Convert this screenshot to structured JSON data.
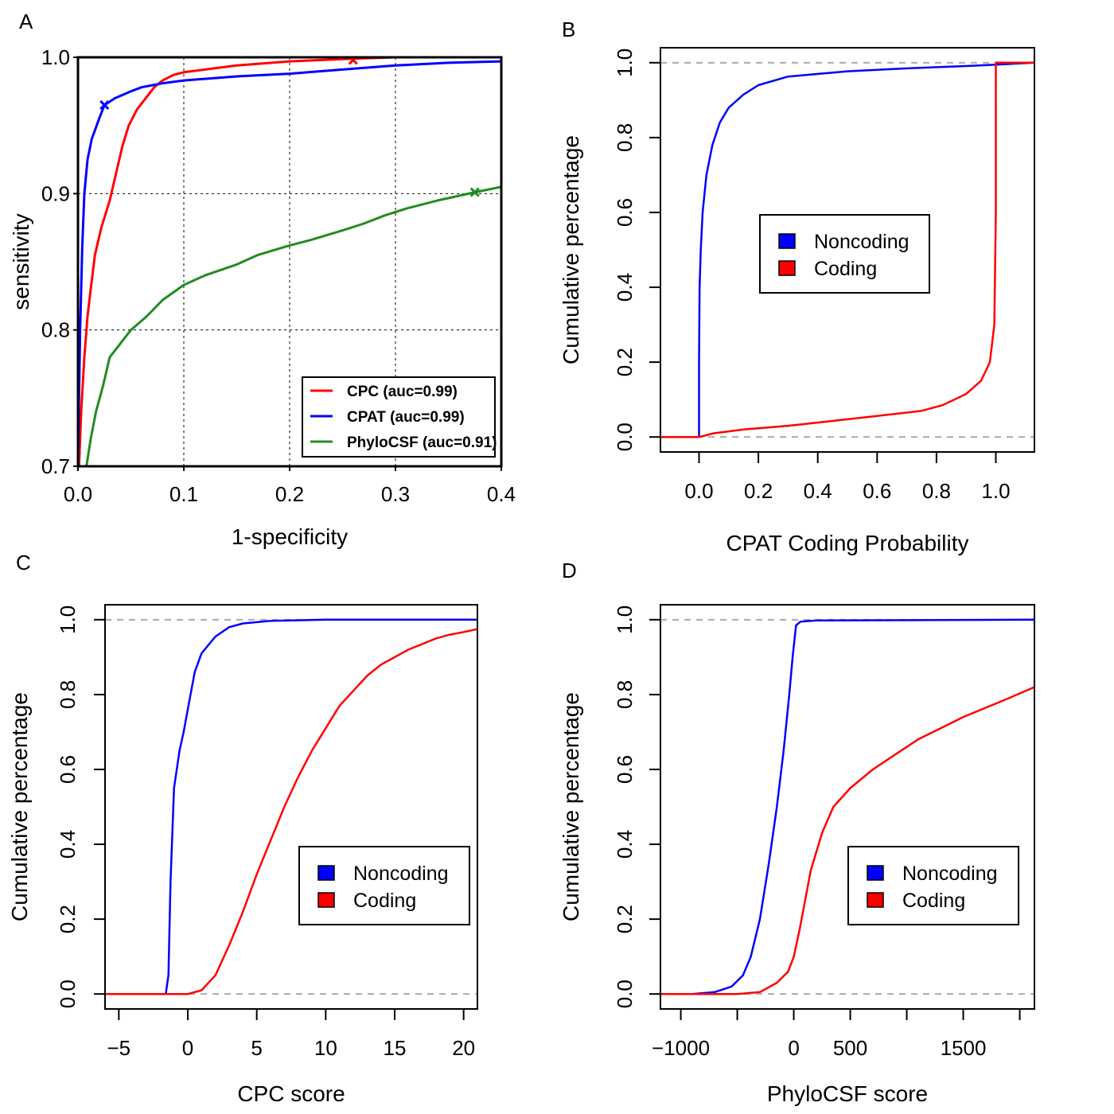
{
  "chart_data": [
    {
      "panel": "A",
      "type": "line",
      "xlabel": "1-specificity",
      "ylabel": "sensitivity",
      "xlim": [
        0.0,
        0.4
      ],
      "ylim": [
        0.7,
        1.0
      ],
      "xticks": [
        "0.0",
        "0.1",
        "0.2",
        "0.3",
        "0.4"
      ],
      "yticks": [
        "0.7",
        "0.8",
        "0.9",
        "1.0"
      ],
      "grid": true,
      "legend_position": "bottom-right",
      "series": [
        {
          "name": "CPC (auc=0.99)",
          "color": "#ff0000",
          "marker": {
            "x": 0.26,
            "y": 0.998
          },
          "points": [
            [
              0.001,
              0.7
            ],
            [
              0.003,
              0.74
            ],
            [
              0.006,
              0.78
            ],
            [
              0.009,
              0.81
            ],
            [
              0.012,
              0.83
            ],
            [
              0.016,
              0.855
            ],
            [
              0.022,
              0.875
            ],
            [
              0.03,
              0.895
            ],
            [
              0.036,
              0.915
            ],
            [
              0.042,
              0.935
            ],
            [
              0.048,
              0.95
            ],
            [
              0.056,
              0.962
            ],
            [
              0.064,
              0.97
            ],
            [
              0.072,
              0.978
            ],
            [
              0.08,
              0.983
            ],
            [
              0.09,
              0.987
            ],
            [
              0.1,
              0.989
            ],
            [
              0.12,
              0.991
            ],
            [
              0.15,
              0.994
            ],
            [
              0.2,
              0.997
            ],
            [
              0.26,
              0.999
            ],
            [
              0.3,
              1.0
            ],
            [
              0.4,
              1.0
            ]
          ]
        },
        {
          "name": "CPAT (auc=0.99)",
          "color": "#0000ff",
          "marker": {
            "x": 0.025,
            "y": 0.965
          },
          "points": [
            [
              0.0,
              0.7
            ],
            [
              0.001,
              0.75
            ],
            [
              0.002,
              0.8
            ],
            [
              0.004,
              0.86
            ],
            [
              0.006,
              0.9
            ],
            [
              0.009,
              0.925
            ],
            [
              0.013,
              0.94
            ],
            [
              0.02,
              0.955
            ],
            [
              0.025,
              0.965
            ],
            [
              0.035,
              0.97
            ],
            [
              0.05,
              0.975
            ],
            [
              0.06,
              0.978
            ],
            [
              0.08,
              0.981
            ],
            [
              0.1,
              0.983
            ],
            [
              0.15,
              0.986
            ],
            [
              0.2,
              0.988
            ],
            [
              0.25,
              0.991
            ],
            [
              0.3,
              0.994
            ],
            [
              0.35,
              0.996
            ],
            [
              0.4,
              0.997
            ]
          ]
        },
        {
          "name": "PhyloCSF (auc=0.91)",
          "color": "#228b22",
          "marker": {
            "x": 0.375,
            "y": 0.901
          },
          "points": [
            [
              0.008,
              0.7
            ],
            [
              0.012,
              0.72
            ],
            [
              0.017,
              0.74
            ],
            [
              0.024,
              0.76
            ],
            [
              0.03,
              0.78
            ],
            [
              0.04,
              0.79
            ],
            [
              0.05,
              0.8
            ],
            [
              0.065,
              0.81
            ],
            [
              0.08,
              0.822
            ],
            [
              0.1,
              0.833
            ],
            [
              0.12,
              0.84
            ],
            [
              0.15,
              0.848
            ],
            [
              0.17,
              0.855
            ],
            [
              0.2,
              0.862
            ],
            [
              0.22,
              0.866
            ],
            [
              0.25,
              0.873
            ],
            [
              0.27,
              0.878
            ],
            [
              0.29,
              0.884
            ],
            [
              0.31,
              0.889
            ],
            [
              0.34,
              0.895
            ],
            [
              0.375,
              0.901
            ],
            [
              0.4,
              0.905
            ]
          ]
        }
      ]
    },
    {
      "panel": "B",
      "type": "line",
      "xlabel": "CPAT Coding Probability",
      "ylabel": "Cumulative percentage",
      "xlim": [
        -0.13,
        1.13
      ],
      "ylim": [
        -0.04,
        1.04
      ],
      "xticks": [
        "0.0",
        "0.2",
        "0.4",
        "0.6",
        "0.8",
        "1.0"
      ],
      "yticks": [
        "0.0",
        "0.2",
        "0.4",
        "0.6",
        "0.8",
        "1.0"
      ],
      "reference_lines": [
        0.0,
        1.0
      ],
      "legend_position": "center",
      "series": [
        {
          "name": "Noncoding",
          "color": "#0000ff",
          "points": [
            [
              -0.13,
              0.0
            ],
            [
              0.0,
              0.0
            ],
            [
              0.0,
              0.2
            ],
            [
              0.002,
              0.4
            ],
            [
              0.006,
              0.5
            ],
            [
              0.012,
              0.6
            ],
            [
              0.025,
              0.7
            ],
            [
              0.045,
              0.78
            ],
            [
              0.07,
              0.84
            ],
            [
              0.1,
              0.88
            ],
            [
              0.15,
              0.915
            ],
            [
              0.2,
              0.94
            ],
            [
              0.3,
              0.963
            ],
            [
              0.5,
              0.977
            ],
            [
              0.7,
              0.985
            ],
            [
              0.9,
              0.991
            ],
            [
              1.0,
              0.995
            ],
            [
              1.13,
              1.0
            ]
          ]
        },
        {
          "name": "Coding",
          "color": "#ff0000",
          "points": [
            [
              -0.13,
              0.0
            ],
            [
              0.0,
              0.0
            ],
            [
              0.05,
              0.01
            ],
            [
              0.15,
              0.02
            ],
            [
              0.3,
              0.03
            ],
            [
              0.45,
              0.043
            ],
            [
              0.6,
              0.056
            ],
            [
              0.75,
              0.07
            ],
            [
              0.82,
              0.085
            ],
            [
              0.9,
              0.115
            ],
            [
              0.95,
              0.15
            ],
            [
              0.98,
              0.2
            ],
            [
              0.995,
              0.3
            ],
            [
              1.0,
              0.6
            ],
            [
              1.0,
              1.0
            ],
            [
              1.13,
              1.0
            ]
          ]
        }
      ]
    },
    {
      "panel": "C",
      "type": "line",
      "xlabel": "CPC score",
      "ylabel": "Cumulative percentage",
      "xlim": [
        -6.0,
        21.0
      ],
      "ylim": [
        -0.04,
        1.04
      ],
      "xticks": [
        "−5",
        "0",
        "5",
        "10",
        "15",
        "20"
      ],
      "yticks": [
        "0.0",
        "0.2",
        "0.4",
        "0.6",
        "0.8",
        "1.0"
      ],
      "reference_lines": [
        0.0,
        1.0
      ],
      "legend_position": "bottom-right",
      "series": [
        {
          "name": "Noncoding",
          "color": "#0000ff",
          "points": [
            [
              -6.0,
              0.0
            ],
            [
              -1.6,
              0.0
            ],
            [
              -1.4,
              0.05
            ],
            [
              -1.25,
              0.3
            ],
            [
              -1.0,
              0.55
            ],
            [
              -0.6,
              0.65
            ],
            [
              -0.3,
              0.7
            ],
            [
              0.1,
              0.78
            ],
            [
              0.5,
              0.86
            ],
            [
              1.0,
              0.91
            ],
            [
              2.0,
              0.955
            ],
            [
              3.0,
              0.98
            ],
            [
              4.0,
              0.99
            ],
            [
              6.0,
              0.997
            ],
            [
              10.0,
              1.0
            ],
            [
              21.0,
              1.0
            ]
          ]
        },
        {
          "name": "Coding",
          "color": "#ff0000",
          "points": [
            [
              -6.0,
              0.0
            ],
            [
              0.0,
              0.0
            ],
            [
              1.0,
              0.01
            ],
            [
              2.0,
              0.05
            ],
            [
              3.0,
              0.13
            ],
            [
              4.0,
              0.22
            ],
            [
              5.0,
              0.32
            ],
            [
              6.0,
              0.41
            ],
            [
              7.0,
              0.5
            ],
            [
              8.0,
              0.58
            ],
            [
              9.0,
              0.65
            ],
            [
              10.0,
              0.71
            ],
            [
              11.0,
              0.77
            ],
            [
              12.0,
              0.81
            ],
            [
              13.0,
              0.85
            ],
            [
              14.0,
              0.88
            ],
            [
              15.0,
              0.9
            ],
            [
              16.0,
              0.92
            ],
            [
              17.0,
              0.935
            ],
            [
              18.0,
              0.95
            ],
            [
              19.0,
              0.96
            ],
            [
              20.0,
              0.967
            ],
            [
              21.0,
              0.975
            ]
          ]
        }
      ]
    },
    {
      "panel": "D",
      "type": "line",
      "xlabel": "PhyloCSF score",
      "ylabel": "Cumulative percentage",
      "xlim": [
        -1180,
        2130
      ],
      "ylim": [
        -0.04,
        1.04
      ],
      "xticks": [
        "−1000",
        "0",
        "500",
        "1500"
      ],
      "xtick_positions": [
        -1000,
        -500,
        0,
        500,
        1000,
        1500,
        2000
      ],
      "yticks": [
        "0.0",
        "0.2",
        "0.4",
        "0.6",
        "0.8",
        "1.0"
      ],
      "reference_lines": [
        0.0,
        1.0
      ],
      "legend_position": "bottom-right",
      "series": [
        {
          "name": "Noncoding",
          "color": "#0000ff",
          "points": [
            [
              -1180,
              0.0
            ],
            [
              -900,
              0.0
            ],
            [
              -700,
              0.005
            ],
            [
              -550,
              0.02
            ],
            [
              -450,
              0.05
            ],
            [
              -380,
              0.1
            ],
            [
              -300,
              0.2
            ],
            [
              -220,
              0.35
            ],
            [
              -150,
              0.5
            ],
            [
              -90,
              0.65
            ],
            [
              -40,
              0.8
            ],
            [
              -10,
              0.9
            ],
            [
              20,
              0.985
            ],
            [
              60,
              0.995
            ],
            [
              200,
              0.998
            ],
            [
              2130,
              1.0
            ]
          ]
        },
        {
          "name": "Coding",
          "color": "#ff0000",
          "points": [
            [
              -1180,
              0.0
            ],
            [
              -500,
              0.0
            ],
            [
              -300,
              0.005
            ],
            [
              -150,
              0.03
            ],
            [
              -50,
              0.06
            ],
            [
              0,
              0.1
            ],
            [
              50,
              0.17
            ],
            [
              100,
              0.25
            ],
            [
              150,
              0.33
            ],
            [
              250,
              0.43
            ],
            [
              350,
              0.5
            ],
            [
              500,
              0.55
            ],
            [
              700,
              0.6
            ],
            [
              900,
              0.64
            ],
            [
              1100,
              0.68
            ],
            [
              1300,
              0.71
            ],
            [
              1500,
              0.74
            ],
            [
              1700,
              0.765
            ],
            [
              1900,
              0.79
            ],
            [
              2130,
              0.82
            ]
          ]
        }
      ]
    }
  ],
  "panel_letters": [
    "A",
    "B",
    "C",
    "D"
  ]
}
